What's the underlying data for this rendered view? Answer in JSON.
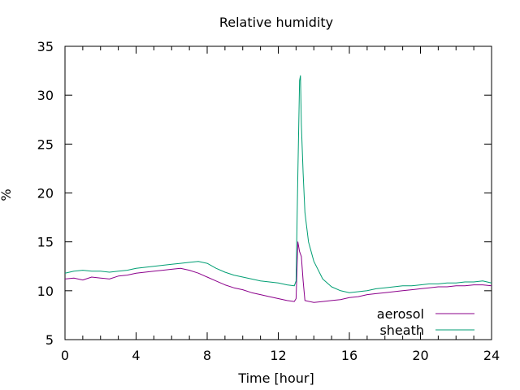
{
  "chart_data": {
    "type": "line",
    "title": "Relative humidity",
    "xlabel": "Time [hour]",
    "ylabel": "%",
    "xlim": [
      0,
      24
    ],
    "ylim": [
      5,
      35
    ],
    "xticks": [
      0,
      4,
      8,
      12,
      16,
      20,
      24
    ],
    "yticks": [
      5,
      10,
      15,
      20,
      25,
      30,
      35
    ],
    "grid": false,
    "legend_position": "bottom-right",
    "series": [
      {
        "name": "aerosol",
        "color": "#8b008b",
        "x": [
          0,
          0.5,
          1,
          1.5,
          2,
          2.5,
          3,
          3.5,
          4,
          4.5,
          5,
          5.5,
          6,
          6.5,
          7,
          7.5,
          8,
          8.5,
          9,
          9.5,
          10,
          10.5,
          11,
          11.5,
          12,
          12.5,
          12.9,
          13.0,
          13.1,
          13.2,
          13.3,
          13.4,
          13.5,
          14,
          14.5,
          15,
          15.5,
          16,
          16.5,
          17,
          17.5,
          18,
          18.5,
          19,
          19.5,
          20,
          20.5,
          21,
          21.5,
          22,
          22.5,
          23,
          23.5,
          24
        ],
        "y": [
          11.2,
          11.3,
          11.1,
          11.4,
          11.3,
          11.2,
          11.5,
          11.6,
          11.8,
          11.9,
          12.0,
          12.1,
          12.2,
          12.3,
          12.1,
          11.8,
          11.4,
          11.0,
          10.6,
          10.3,
          10.1,
          9.8,
          9.6,
          9.4,
          9.2,
          9.0,
          8.9,
          9.2,
          15.0,
          14.0,
          13.5,
          11.0,
          9.0,
          8.8,
          8.9,
          9.0,
          9.1,
          9.3,
          9.4,
          9.6,
          9.7,
          9.8,
          9.9,
          10.0,
          10.1,
          10.2,
          10.3,
          10.4,
          10.4,
          10.5,
          10.5,
          10.6,
          10.6,
          10.5
        ]
      },
      {
        "name": "sheath",
        "color": "#009e73",
        "x": [
          0,
          0.5,
          1,
          1.5,
          2,
          2.5,
          3,
          3.5,
          4,
          4.5,
          5,
          5.5,
          6,
          6.5,
          7,
          7.5,
          8,
          8.5,
          9,
          9.5,
          10,
          10.5,
          11,
          11.5,
          12,
          12.5,
          12.9,
          13.0,
          13.1,
          13.2,
          13.25,
          13.3,
          13.4,
          13.5,
          13.7,
          14,
          14.5,
          15,
          15.5,
          16,
          16.5,
          17,
          17.5,
          18,
          18.5,
          19,
          19.5,
          20,
          20.5,
          21,
          21.5,
          22,
          22.5,
          23,
          23.5,
          24
        ],
        "y": [
          11.8,
          12.0,
          12.1,
          12.0,
          12.0,
          11.9,
          12.0,
          12.1,
          12.3,
          12.4,
          12.5,
          12.6,
          12.7,
          12.8,
          12.9,
          13.0,
          12.8,
          12.3,
          11.9,
          11.6,
          11.4,
          11.2,
          11.0,
          10.9,
          10.8,
          10.6,
          10.5,
          11.0,
          22.0,
          31.5,
          32.0,
          27.0,
          22.0,
          18.0,
          15.0,
          13.0,
          11.2,
          10.4,
          10.0,
          9.8,
          9.9,
          10.0,
          10.2,
          10.3,
          10.4,
          10.5,
          10.5,
          10.6,
          10.7,
          10.7,
          10.8,
          10.8,
          10.9,
          10.9,
          11.0,
          10.8
        ]
      }
    ]
  }
}
